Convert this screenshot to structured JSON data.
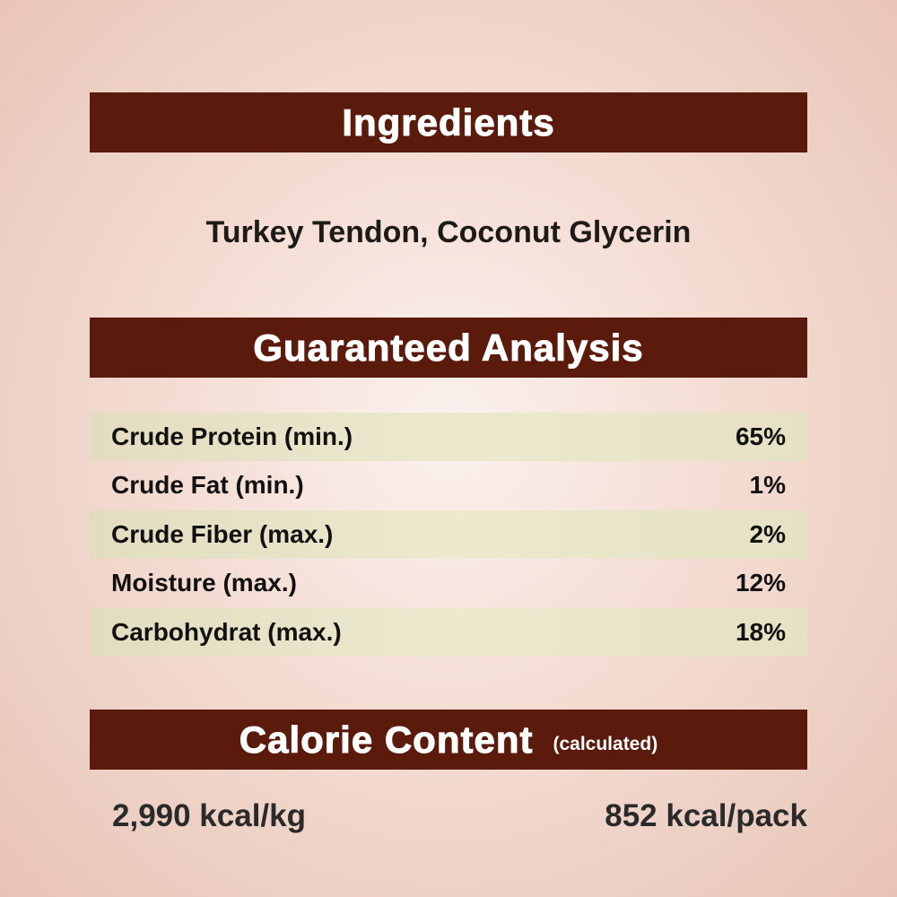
{
  "ingredients": {
    "heading": "Ingredients",
    "text": "Turkey Tendon, Coconut Glycerin"
  },
  "analysis": {
    "heading": "Guaranteed Analysis",
    "rows": [
      {
        "label": "Crude Protein (min.)",
        "value": "65%"
      },
      {
        "label": "Crude Fat (min.)",
        "value": "1%"
      },
      {
        "label": "Crude Fiber (max.)",
        "value": "2%"
      },
      {
        "label": "Moisture (max.)",
        "value": "12%"
      },
      {
        "label": "Carbohydrat (max.)",
        "value": "18%"
      }
    ]
  },
  "calorie": {
    "heading": "Calorie Content",
    "note": "(calculated)",
    "per_kg": "2,990 kcal/kg",
    "per_pack": "852 kcal/pack"
  },
  "colors": {
    "header_bar": "#5a1a0c",
    "row_shade": "#e8e3c6"
  }
}
